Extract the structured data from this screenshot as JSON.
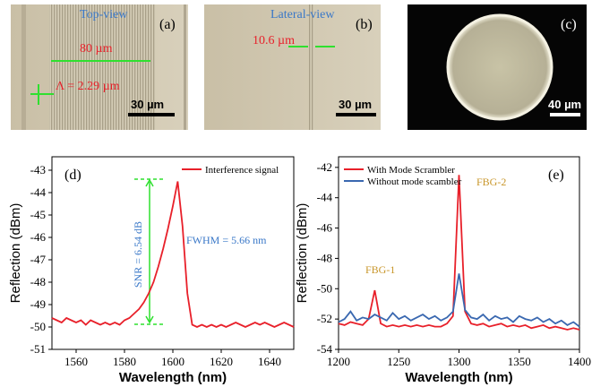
{
  "panels": [
    {
      "title": "Top-view",
      "label": "(a)",
      "annotations": [
        "80 µm",
        "Λ = 2.29 µm"
      ],
      "scale_bar": "30 µm"
    },
    {
      "title": "Lateral-view",
      "label": "(b)",
      "annotations": [
        "10.6 µm"
      ],
      "scale_bar": "30 µm"
    },
    {
      "label": "(c)",
      "scale_bar": "40 µm"
    }
  ],
  "chart_data": [
    {
      "type": "line",
      "panel_label": "(d)",
      "x_label": "Wavelength (nm)",
      "y_label": "Reflection (dBm)",
      "xlim": [
        1550,
        1650
      ],
      "xticks": [
        1560,
        1580,
        1600,
        1620,
        1640
      ],
      "ylim": [
        -51,
        -42.4
      ],
      "yticks": [
        -51,
        -50,
        -49,
        -48,
        -47,
        -46,
        -45,
        -44,
        -43
      ],
      "legend": "top-right",
      "annotations": [
        "SNR = 6.54 dB",
        "FWHM = 5.66 nm"
      ],
      "x": [
        1550,
        1552,
        1554,
        1556,
        1558,
        1560,
        1562,
        1564,
        1566,
        1568,
        1570,
        1572,
        1574,
        1576,
        1578,
        1580,
        1582,
        1584,
        1586,
        1588,
        1590,
        1592,
        1594,
        1596,
        1598,
        1600,
        1602,
        1604,
        1606,
        1608,
        1610,
        1612,
        1614,
        1616,
        1618,
        1620,
        1622,
        1624,
        1626,
        1628,
        1630,
        1632,
        1634,
        1636,
        1638,
        1640,
        1642,
        1644,
        1646,
        1648,
        1650
      ],
      "series": [
        {
          "name": "Interference signal",
          "color": "#e8202a",
          "values": [
            -49.6,
            -49.7,
            -49.8,
            -49.6,
            -49.7,
            -49.8,
            -49.7,
            -49.9,
            -49.7,
            -49.8,
            -49.9,
            -49.8,
            -49.9,
            -49.8,
            -49.9,
            -49.7,
            -49.6,
            -49.4,
            -49.2,
            -48.9,
            -48.5,
            -48.0,
            -47.3,
            -46.5,
            -45.6,
            -44.6,
            -43.5,
            -45.5,
            -48.5,
            -49.9,
            -50.0,
            -49.9,
            -50.0,
            -49.9,
            -50.0,
            -49.9,
            -50.0,
            -49.9,
            -49.8,
            -49.9,
            -50.0,
            -49.9,
            -49.8,
            -49.9,
            -49.8,
            -49.9,
            -50.0,
            -49.9,
            -49.8,
            -49.9,
            -50.0
          ]
        }
      ]
    },
    {
      "type": "line",
      "panel_label": "(e)",
      "x_label": "Wavelength (nm)",
      "y_label": "Reflection (dBm)",
      "xlim": [
        1200,
        1400
      ],
      "xticks": [
        1200,
        1250,
        1300,
        1350,
        1400
      ],
      "ylim": [
        -54,
        -41.3
      ],
      "yticks": [
        -54,
        -52,
        -50,
        -48,
        -46,
        -44,
        -42
      ],
      "legend": "top-left",
      "annotations": [
        "FBG-1",
        "FBG-2"
      ],
      "x": [
        1200,
        1205,
        1210,
        1215,
        1220,
        1225,
        1230,
        1235,
        1240,
        1245,
        1250,
        1255,
        1260,
        1265,
        1270,
        1275,
        1280,
        1285,
        1290,
        1295,
        1300,
        1305,
        1310,
        1315,
        1320,
        1325,
        1330,
        1335,
        1340,
        1345,
        1350,
        1355,
        1360,
        1365,
        1370,
        1375,
        1380,
        1385,
        1390,
        1395,
        1400
      ],
      "series": [
        {
          "name": "With Mode Scrambler",
          "color": "#e8202a",
          "values": [
            -52.3,
            -52.4,
            -52.2,
            -52.3,
            -52.4,
            -52.0,
            -50.1,
            -52.3,
            -52.5,
            -52.4,
            -52.5,
            -52.4,
            -52.5,
            -52.4,
            -52.5,
            -52.4,
            -52.5,
            -52.5,
            -52.3,
            -51.8,
            -42.5,
            -51.5,
            -52.3,
            -52.4,
            -52.3,
            -52.5,
            -52.4,
            -52.3,
            -52.5,
            -52.4,
            -52.5,
            -52.4,
            -52.6,
            -52.5,
            -52.4,
            -52.6,
            -52.5,
            -52.6,
            -52.7,
            -52.6,
            -52.7
          ]
        },
        {
          "name": "Without mode scambler",
          "color": "#3a68b0",
          "values": [
            -52.2,
            -52.0,
            -51.5,
            -52.1,
            -51.9,
            -52.0,
            -51.7,
            -51.9,
            -52.1,
            -51.6,
            -52.0,
            -51.8,
            -52.1,
            -51.9,
            -51.7,
            -52.0,
            -51.8,
            -52.1,
            -51.9,
            -51.5,
            -49.0,
            -51.4,
            -51.9,
            -52.0,
            -51.7,
            -52.1,
            -51.8,
            -52.0,
            -51.9,
            -52.2,
            -51.8,
            -52.0,
            -52.1,
            -51.9,
            -52.2,
            -52.0,
            -52.3,
            -52.1,
            -52.4,
            -52.2,
            -52.5
          ]
        }
      ]
    }
  ]
}
